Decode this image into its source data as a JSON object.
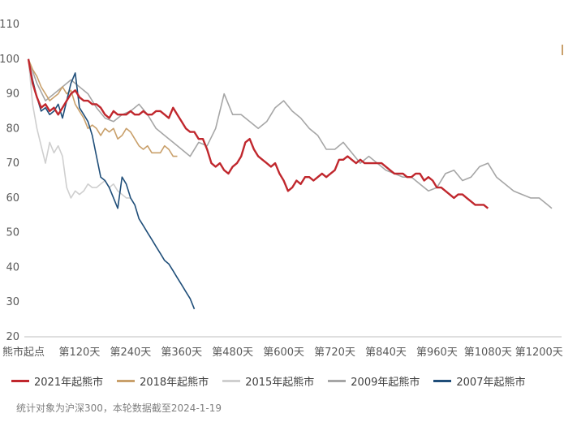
{
  "chart_data": {
    "type": "line",
    "title": "",
    "xlabel": "",
    "ylabel": "",
    "ylim": [
      20,
      110
    ],
    "xlim": [
      0,
      1230
    ],
    "yticks": [
      20,
      30,
      40,
      50,
      60,
      70,
      80,
      90,
      100,
      110
    ],
    "xtick_labels": [
      "熊市起点",
      "第120天",
      "第240天",
      "第360天",
      "第480天",
      "第600天",
      "第720天",
      "第840天",
      "第960天",
      "第1080天",
      "第1200天"
    ],
    "xtick_positions": [
      0,
      120,
      240,
      360,
      480,
      600,
      720,
      840,
      960,
      1080,
      1200
    ],
    "grid": false,
    "legend_position": "bottom",
    "series": [
      {
        "name": "2021年起熊市",
        "color": "#c0272d",
        "x": [
          0,
          10,
          20,
          30,
          40,
          50,
          60,
          70,
          80,
          90,
          100,
          110,
          120,
          130,
          140,
          150,
          160,
          170,
          180,
          190,
          200,
          210,
          220,
          230,
          240,
          250,
          260,
          270,
          280,
          290,
          300,
          310,
          320,
          330,
          340,
          350,
          360,
          370,
          380,
          390,
          400,
          410,
          420,
          430,
          440,
          450,
          460,
          470,
          480,
          490,
          500,
          510,
          520,
          530,
          540,
          550,
          560,
          570,
          580,
          590,
          600,
          610,
          620,
          630,
          640,
          650,
          660,
          670,
          680,
          690,
          700,
          710,
          720,
          730,
          740,
          750,
          760,
          770,
          780,
          790,
          800,
          810,
          820,
          830,
          840,
          850,
          860,
          870,
          880,
          890,
          900,
          910,
          920,
          930,
          940,
          950,
          960,
          970,
          980,
          990,
          1000,
          1010,
          1020,
          1030,
          1040,
          1050,
          1060,
          1070,
          1080
        ],
        "y": [
          100,
          93,
          89,
          86,
          87,
          85,
          86,
          84,
          86,
          88,
          90,
          91,
          89,
          88,
          88,
          87,
          87,
          86,
          84,
          83,
          85,
          84,
          84,
          84,
          85,
          84,
          84,
          85,
          84,
          84,
          85,
          85,
          84,
          83,
          86,
          84,
          82,
          80,
          79,
          79,
          77,
          77,
          74,
          70,
          69,
          70,
          68,
          67,
          69,
          70,
          72,
          76,
          77,
          74,
          72,
          71,
          70,
          69,
          70,
          67,
          65,
          62,
          63,
          65,
          64,
          66,
          66,
          65,
          66,
          67,
          66,
          67,
          68,
          71,
          71,
          72,
          71,
          70,
          71,
          70,
          70,
          70,
          70,
          70,
          69,
          68,
          67,
          67,
          67,
          66,
          66,
          67,
          67,
          65,
          66,
          65,
          63,
          63,
          62,
          61,
          60,
          61,
          61,
          60,
          59,
          58,
          58,
          58,
          57
        ]
      },
      {
        "name": "2018年起熊市",
        "color": "#c9a06b",
        "x": [
          0,
          10,
          20,
          30,
          40,
          50,
          60,
          70,
          80,
          90,
          100,
          110,
          120,
          130,
          140,
          150,
          160,
          170,
          180,
          190,
          200,
          210,
          220,
          230,
          240,
          250,
          260,
          270,
          280,
          290,
          300,
          310,
          320,
          330,
          340,
          350
        ],
        "y": [
          100,
          97,
          95,
          92,
          90,
          88,
          89,
          90,
          92,
          90,
          91,
          87,
          85,
          83,
          80,
          81,
          80,
          78,
          80,
          79,
          80,
          77,
          78,
          80,
          79,
          77,
          75,
          74,
          75,
          73,
          73,
          73,
          75,
          74,
          72,
          72
        ]
      },
      {
        "name": "2015年起熊市",
        "color": "#cfcfcf",
        "x": [
          0,
          10,
          20,
          30,
          40,
          50,
          60,
          70,
          80,
          90,
          100,
          110,
          120,
          130,
          140,
          150,
          160,
          170,
          180,
          190,
          200,
          210,
          220,
          230,
          240
        ],
        "y": [
          100,
          87,
          80,
          75,
          70,
          76,
          73,
          75,
          72,
          63,
          60,
          62,
          61,
          62,
          64,
          63,
          63,
          64,
          65,
          63,
          64,
          62,
          61,
          60,
          60
        ]
      },
      {
        "name": "2009年起熊市",
        "color": "#a6a6a6",
        "x": [
          0,
          20,
          40,
          60,
          80,
          100,
          120,
          140,
          160,
          180,
          200,
          220,
          240,
          260,
          280,
          300,
          320,
          340,
          360,
          380,
          400,
          420,
          440,
          460,
          480,
          500,
          520,
          540,
          560,
          580,
          600,
          620,
          640,
          660,
          680,
          700,
          720,
          740,
          760,
          780,
          800,
          820,
          840,
          860,
          880,
          900,
          920,
          940,
          960,
          980,
          1000,
          1020,
          1040,
          1060,
          1080,
          1100,
          1120,
          1140,
          1160,
          1180,
          1200,
          1220,
          1230
        ],
        "y": [
          100,
          93,
          88,
          90,
          92,
          94,
          92,
          90,
          86,
          83,
          82,
          84,
          85,
          87,
          84,
          80,
          78,
          76,
          74,
          72,
          76,
          75,
          80,
          90,
          84,
          84,
          82,
          80,
          82,
          86,
          88,
          85,
          83,
          80,
          78,
          74,
          74,
          76,
          73,
          70,
          72,
          70,
          68,
          67,
          66,
          66,
          64,
          62,
          63,
          67,
          68,
          65,
          66,
          69,
          70,
          66,
          64,
          62,
          61,
          60,
          60,
          58,
          57
        ]
      },
      {
        "name": "2007年起熊市",
        "color": "#1f4e79",
        "x": [
          0,
          10,
          20,
          30,
          40,
          50,
          60,
          70,
          80,
          90,
          100,
          110,
          120,
          130,
          140,
          150,
          160,
          170,
          180,
          190,
          200,
          210,
          220,
          230,
          240,
          250,
          260,
          270,
          280,
          290,
          300,
          310,
          320,
          330,
          340,
          350,
          360,
          370,
          380,
          390
        ],
        "y": [
          100,
          94,
          89,
          85,
          86,
          84,
          85,
          87,
          83,
          88,
          93,
          96,
          86,
          84,
          82,
          78,
          72,
          66,
          65,
          63,
          60,
          57,
          66,
          64,
          60,
          58,
          54,
          52,
          50,
          48,
          46,
          44,
          42,
          41,
          39,
          37,
          35,
          33,
          31,
          28
        ]
      }
    ]
  },
  "note": "统计对象为沪深300，本轮数据截至2024-1-19"
}
